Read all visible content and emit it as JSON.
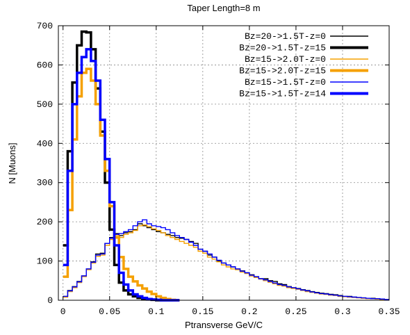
{
  "chart_data": {
    "type": "line",
    "step": true,
    "title": "Taper Length=8 m",
    "xlabel": "Ptransverse GeV/C",
    "ylabel": "N  [Muons]",
    "xlim": [
      -0.005,
      0.35
    ],
    "ylim": [
      0,
      700
    ],
    "xticks": [
      0,
      0.05,
      0.1,
      0.15,
      0.2,
      0.25,
      0.3,
      0.35
    ],
    "xtick_labels": [
      "0",
      "0.05",
      "0.1",
      "0.15",
      "0.2",
      "0.25",
      "0.3",
      "0.35"
    ],
    "yticks": [
      0,
      100,
      200,
      300,
      400,
      500,
      600,
      700
    ],
    "ytick_labels": [
      "0",
      "100",
      "200",
      "300",
      "400",
      "500",
      "600",
      "700"
    ],
    "grid": true,
    "legend_position": "top-right",
    "series": [
      {
        "name": "Bz=20->1.5T-z=0",
        "color": "#000000",
        "width": "thin",
        "x": [
          0,
          0.005,
          0.01,
          0.015,
          0.02,
          0.025,
          0.03,
          0.035,
          0.04,
          0.045,
          0.05,
          0.055,
          0.06,
          0.065,
          0.07,
          0.075,
          0.08,
          0.085,
          0.09,
          0.095,
          0.1,
          0.105,
          0.11,
          0.115,
          0.12,
          0.125,
          0.13,
          0.135,
          0.14,
          0.145,
          0.15,
          0.155,
          0.16,
          0.165,
          0.17,
          0.175,
          0.18,
          0.185,
          0.19,
          0.195,
          0.2,
          0.205,
          0.21,
          0.215,
          0.22,
          0.225,
          0.23,
          0.235,
          0.24,
          0.245,
          0.25,
          0.255,
          0.26,
          0.265,
          0.27,
          0.275,
          0.28,
          0.285,
          0.29,
          0.295,
          0.3,
          0.305,
          0.31,
          0.315,
          0.32,
          0.325,
          0.33,
          0.335,
          0.34,
          0.345
        ],
        "values": [
          10,
          25,
          35,
          48,
          62,
          80,
          98,
          118,
          120,
          145,
          160,
          170,
          165,
          172,
          175,
          180,
          195,
          190,
          185,
          180,
          175,
          172,
          168,
          165,
          160,
          158,
          155,
          150,
          145,
          130,
          125,
          115,
          110,
          100,
          95,
          90,
          85,
          80,
          75,
          70,
          65,
          60,
          55,
          55,
          50,
          48,
          42,
          40,
          35,
          32,
          30,
          27,
          25,
          22,
          20,
          18,
          17,
          15,
          14,
          12,
          10,
          10,
          8,
          7,
          6,
          5,
          5,
          4,
          3,
          2
        ]
      },
      {
        "name": "Bz=20->1.5T-z=15",
        "color": "#000000",
        "width": "thick",
        "x": [
          0,
          0.005,
          0.01,
          0.015,
          0.02,
          0.025,
          0.03,
          0.035,
          0.04,
          0.045,
          0.05,
          0.055,
          0.06,
          0.065,
          0.07,
          0.075,
          0.08,
          0.085,
          0.09,
          0.095,
          0.1,
          0.105,
          0.11,
          0.115,
          0.12
        ],
        "values": [
          140,
          380,
          555,
          650,
          685,
          683,
          640,
          540,
          430,
          300,
          180,
          90,
          45,
          25,
          15,
          10,
          6,
          4,
          2,
          1,
          0,
          0,
          0,
          0,
          0
        ]
      },
      {
        "name": "Bz=15->2.0T-z=0",
        "color": "#f5a000",
        "width": "thin",
        "x": [
          0,
          0.005,
          0.01,
          0.015,
          0.02,
          0.025,
          0.03,
          0.035,
          0.04,
          0.045,
          0.05,
          0.055,
          0.06,
          0.065,
          0.07,
          0.075,
          0.08,
          0.085,
          0.09,
          0.095,
          0.1,
          0.105,
          0.11,
          0.115,
          0.12,
          0.125,
          0.13,
          0.135,
          0.14,
          0.145,
          0.15,
          0.155,
          0.16,
          0.165,
          0.17,
          0.175,
          0.18,
          0.185,
          0.19,
          0.195,
          0.2,
          0.205,
          0.21,
          0.215,
          0.22,
          0.225,
          0.23,
          0.235,
          0.24,
          0.245,
          0.25,
          0.255,
          0.26,
          0.265,
          0.27,
          0.275,
          0.28,
          0.285,
          0.29,
          0.295,
          0.3,
          0.305,
          0.31,
          0.315,
          0.32,
          0.325,
          0.33,
          0.335,
          0.34,
          0.345
        ],
        "values": [
          8,
          22,
          32,
          45,
          60,
          78,
          95,
          112,
          115,
          140,
          155,
          165,
          160,
          168,
          172,
          178,
          190,
          192,
          188,
          182,
          178,
          172,
          165,
          160,
          155,
          150,
          145,
          140,
          135,
          125,
          120,
          110,
          105,
          98,
          90,
          85,
          80,
          78,
          72,
          68,
          62,
          58,
          54,
          50,
          46,
          42,
          38,
          36,
          32,
          30,
          28,
          25,
          22,
          20,
          18,
          16,
          15,
          13,
          12,
          10,
          9,
          8,
          7,
          6,
          5,
          4,
          4,
          3,
          2,
          2
        ]
      },
      {
        "name": "Bz=15->2.0T-z=15",
        "color": "#f5a000",
        "width": "thick",
        "x": [
          0,
          0.005,
          0.01,
          0.015,
          0.02,
          0.025,
          0.03,
          0.035,
          0.04,
          0.045,
          0.05,
          0.055,
          0.06,
          0.065,
          0.07,
          0.075,
          0.08,
          0.085,
          0.09,
          0.095,
          0.1,
          0.105,
          0.11,
          0.115,
          0.12
        ],
        "values": [
          60,
          230,
          410,
          520,
          580,
          590,
          560,
          500,
          420,
          330,
          240,
          160,
          110,
          80,
          60,
          48,
          38,
          30,
          22,
          16,
          10,
          6,
          3,
          1,
          0
        ]
      },
      {
        "name": "Bz=15->1.5T-z=0",
        "color": "#0000ff",
        "width": "thin",
        "x": [
          0,
          0.005,
          0.01,
          0.015,
          0.02,
          0.025,
          0.03,
          0.035,
          0.04,
          0.045,
          0.05,
          0.055,
          0.06,
          0.065,
          0.07,
          0.075,
          0.08,
          0.085,
          0.09,
          0.095,
          0.1,
          0.105,
          0.11,
          0.115,
          0.12,
          0.125,
          0.13,
          0.135,
          0.14,
          0.145,
          0.15,
          0.155,
          0.16,
          0.165,
          0.17,
          0.175,
          0.18,
          0.185,
          0.19,
          0.195,
          0.2,
          0.205,
          0.21,
          0.215,
          0.22,
          0.225,
          0.23,
          0.235,
          0.24,
          0.245,
          0.25,
          0.255,
          0.26,
          0.265,
          0.27,
          0.275,
          0.28,
          0.285,
          0.29,
          0.295,
          0.3,
          0.305,
          0.31,
          0.315,
          0.32,
          0.325,
          0.33,
          0.335,
          0.34,
          0.345
        ],
        "values": [
          10,
          24,
          34,
          47,
          62,
          80,
          97,
          115,
          118,
          145,
          158,
          168,
          170,
          175,
          180,
          190,
          200,
          205,
          195,
          190,
          188,
          185,
          180,
          172,
          165,
          160,
          155,
          148,
          140,
          130,
          125,
          118,
          110,
          102,
          95,
          90,
          85,
          80,
          74,
          70,
          64,
          60,
          55,
          52,
          48,
          44,
          40,
          38,
          34,
          32,
          29,
          26,
          24,
          21,
          19,
          17,
          16,
          14,
          13,
          11,
          10,
          9,
          8,
          7,
          6,
          5,
          4,
          4,
          3,
          2
        ]
      },
      {
        "name": "Bz=15->1.5T-z=14",
        "color": "#0000ff",
        "width": "thick",
        "x": [
          0,
          0.005,
          0.01,
          0.015,
          0.02,
          0.025,
          0.03,
          0.035,
          0.04,
          0.045,
          0.05,
          0.055,
          0.06,
          0.065,
          0.07,
          0.075,
          0.08,
          0.085,
          0.09,
          0.095,
          0.1,
          0.105,
          0.11,
          0.115,
          0.12
        ],
        "values": [
          90,
          330,
          500,
          580,
          620,
          640,
          610,
          560,
          460,
          360,
          250,
          140,
          70,
          40,
          25,
          15,
          10,
          6,
          3,
          2,
          1,
          0,
          0,
          0,
          0
        ]
      }
    ]
  }
}
